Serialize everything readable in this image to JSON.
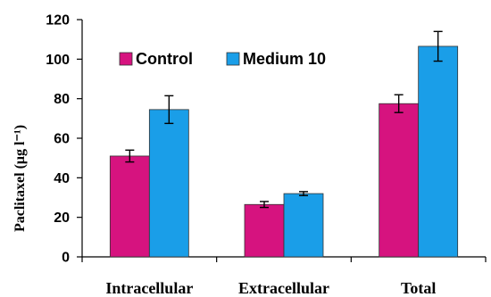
{
  "chart_data": {
    "type": "bar",
    "ylabel": "Paclitaxel (μg l⁻¹)",
    "ylim": [
      0,
      120
    ],
    "yticks": [
      0,
      20,
      40,
      60,
      80,
      100,
      120
    ],
    "categories": [
      "Intracellular",
      "Extracellular",
      "Total"
    ],
    "series": [
      {
        "name": "Control",
        "color": "#d6137f",
        "values": [
          51,
          26.5,
          77.5
        ],
        "errors": [
          3,
          1.5,
          4.5
        ]
      },
      {
        "name": "Medium 10",
        "color": "#1a9ee8",
        "values": [
          74.5,
          32,
          106.5
        ],
        "errors": [
          7,
          1,
          7.5
        ]
      }
    ],
    "legend_position": "top-left",
    "error_bars": true,
    "grid": false
  }
}
